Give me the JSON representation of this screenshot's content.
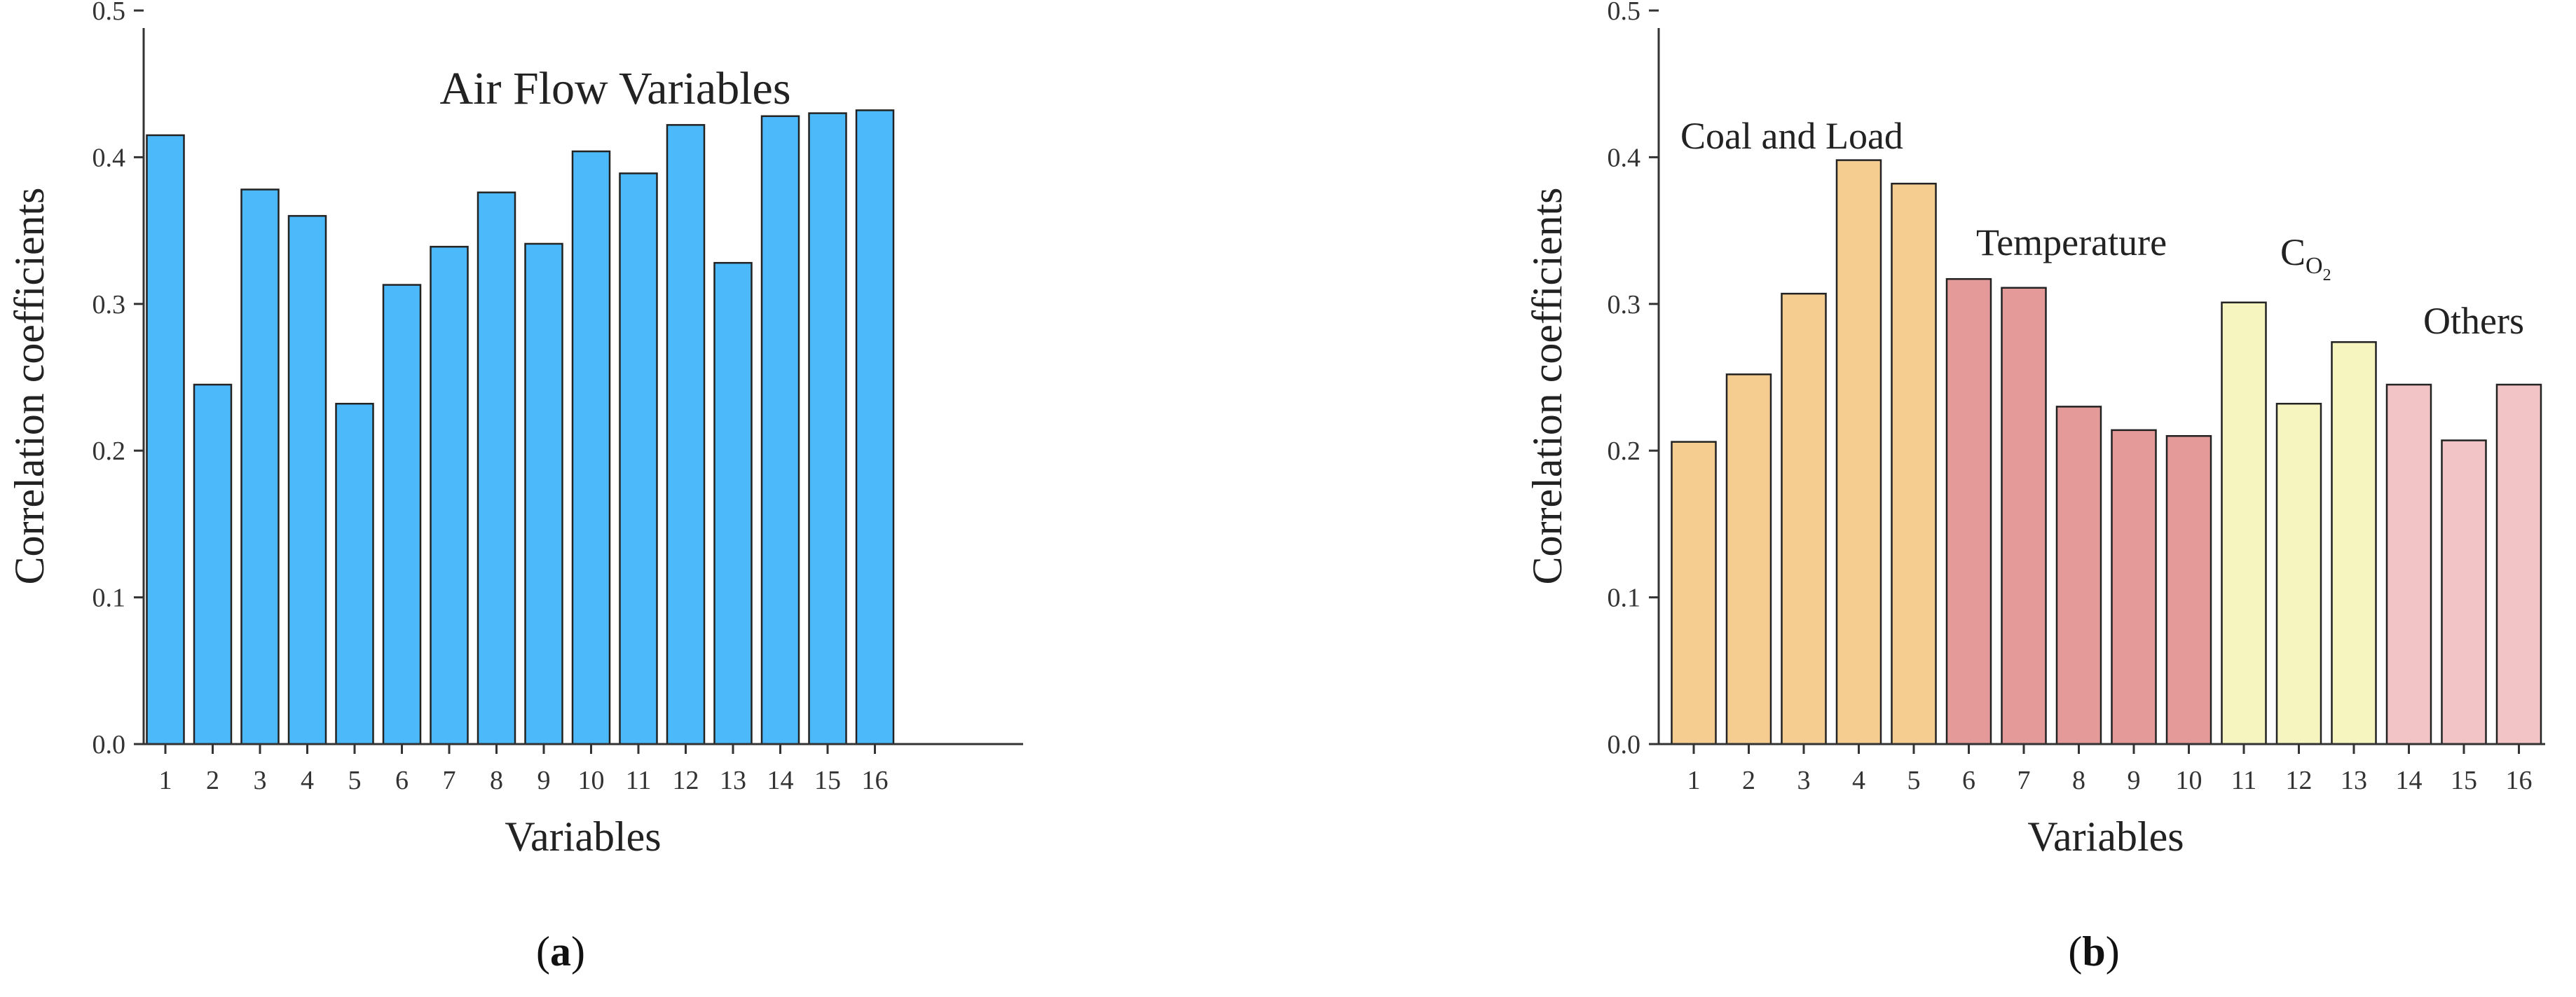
{
  "chart_data": [
    {
      "type": "bar",
      "panel_label": "(a)",
      "panel_letter": "a",
      "title": "Air Flow Variables",
      "xlabel": "Variables",
      "ylabel": "Correlation coefficients",
      "ylim": [
        0,
        0.5
      ],
      "yticks": [
        "0.0",
        "0.1",
        "0.2",
        "0.3",
        "0.4",
        "0.5"
      ],
      "categories": [
        "1",
        "2",
        "3",
        "4",
        "5",
        "6",
        "7",
        "8",
        "9",
        "10",
        "11",
        "12",
        "13",
        "14",
        "15",
        "16"
      ],
      "values": [
        0.415,
        0.245,
        0.378,
        0.36,
        0.232,
        0.313,
        0.339,
        0.376,
        0.341,
        0.404,
        0.389,
        0.422,
        0.328,
        0.428,
        0.43,
        0.432
      ],
      "bar_colors": [
        "#4BB9FA",
        "#4BB9FA",
        "#4BB9FA",
        "#4BB9FA",
        "#4BB9FA",
        "#4BB9FA",
        "#4BB9FA",
        "#4BB9FA",
        "#4BB9FA",
        "#4BB9FA",
        "#4BB9FA",
        "#4BB9FA",
        "#4BB9FA",
        "#4BB9FA",
        "#4BB9FA",
        "#4BB9FA"
      ],
      "annotations": []
    },
    {
      "type": "bar",
      "panel_label": "(b)",
      "panel_letter": "b",
      "title": "",
      "xlabel": "Variables",
      "ylabel": "Correlation coefficients",
      "ylim": [
        0,
        0.5
      ],
      "yticks": [
        "0.0",
        "0.1",
        "0.2",
        "0.3",
        "0.4",
        "0.5"
      ],
      "categories": [
        "1",
        "2",
        "3",
        "4",
        "5",
        "6",
        "7",
        "8",
        "9",
        "10",
        "11",
        "12",
        "13",
        "14",
        "15",
        "16"
      ],
      "values": [
        0.206,
        0.252,
        0.307,
        0.398,
        0.382,
        0.317,
        0.311,
        0.23,
        0.214,
        0.21,
        0.301,
        0.232,
        0.274,
        0.245,
        0.207,
        0.245
      ],
      "bar_colors": [
        "#F5CD91",
        "#F5CD91",
        "#F5CD91",
        "#F5CD91",
        "#F5CD91",
        "#E59A9A",
        "#E59A9A",
        "#E59A9A",
        "#E59A9A",
        "#E59A9A",
        "#F6F5C0",
        "#F6F5C0",
        "#F6F5C0",
        "#F2C4C6",
        "#F2C4C6",
        "#F2C4C6"
      ],
      "annotations": [
        {
          "text": "Coal and Load",
          "group": "1-5"
        },
        {
          "text": "Temperature",
          "group": "6-10"
        },
        {
          "text": "C",
          "sub": "O",
          "sub2": "2",
          "group": "11-13"
        },
        {
          "text": "Others",
          "group": "14-16"
        }
      ]
    }
  ]
}
